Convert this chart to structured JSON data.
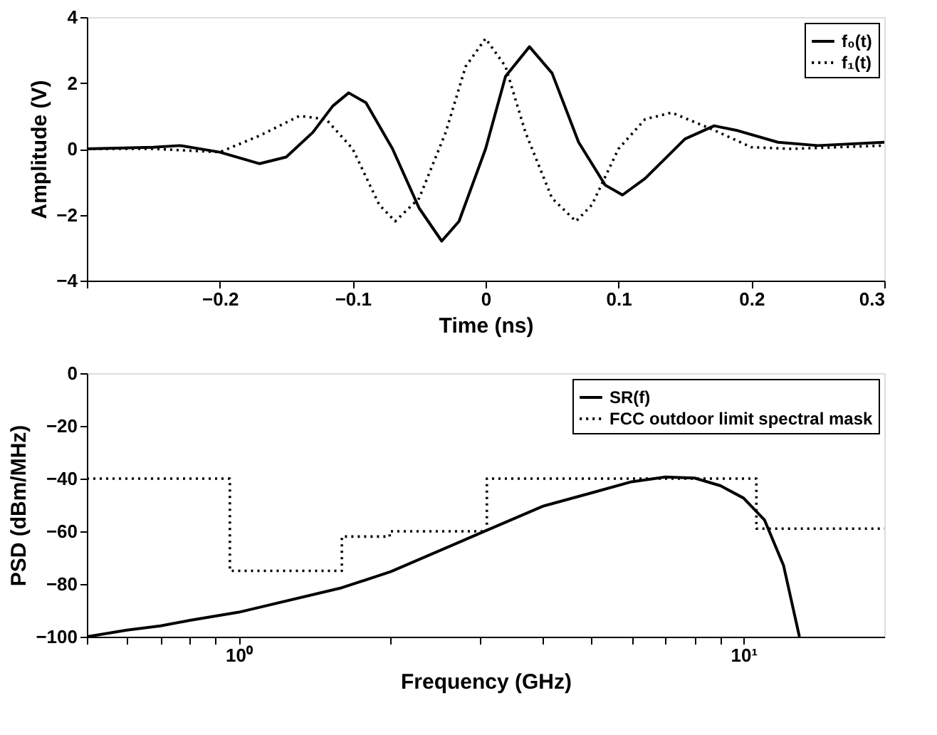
{
  "chart_data": [
    {
      "type": "line",
      "xlabel": "Time (ns)",
      "ylabel": "Amplitude (V)",
      "xlim": [
        -0.3,
        0.3
      ],
      "ylim": [
        -4,
        4
      ],
      "xticks": [
        {
          "value": -0.3,
          "label": null
        },
        -0.2,
        -0.1,
        0,
        0.1,
        0.2,
        0.3
      ],
      "yticks": [
        -4,
        -2,
        0,
        2,
        4
      ],
      "grid": false,
      "legend": "top right",
      "series": [
        {
          "name": "f₀(t)",
          "color": "#000000",
          "line_style": "solid",
          "x": [
            -0.3,
            -0.25,
            -0.23,
            -0.2,
            -0.17,
            -0.15,
            -0.13,
            -0.115,
            -0.103,
            -0.09,
            -0.07,
            -0.05,
            -0.033,
            -0.02,
            0,
            0.015,
            0.033,
            0.05,
            0.07,
            0.09,
            0.103,
            0.12,
            0.15,
            0.172,
            0.19,
            0.22,
            0.25,
            0.3
          ],
          "values": [
            0,
            0.05,
            0.1,
            -0.1,
            -0.45,
            -0.25,
            0.5,
            1.3,
            1.7,
            1.4,
            0,
            -1.8,
            -2.8,
            -2.2,
            0,
            2.2,
            3.1,
            2.3,
            0.2,
            -1.1,
            -1.4,
            -0.9,
            0.3,
            0.7,
            0.55,
            0.2,
            0.1,
            0.2
          ]
        },
        {
          "name": "f₁(t)",
          "color": "#000000",
          "line_style": "dotted",
          "x": [
            -0.3,
            -0.25,
            -0.2,
            -0.17,
            -0.14,
            -0.12,
            -0.1,
            -0.08,
            -0.068,
            -0.05,
            -0.03,
            -0.015,
            0,
            0.015,
            0.03,
            0.05,
            0.068,
            0.08,
            0.1,
            0.12,
            0.14,
            0.17,
            0.2,
            0.23,
            0.3
          ],
          "values": [
            0,
            0,
            -0.1,
            0.4,
            1.0,
            0.9,
            0,
            -1.7,
            -2.2,
            -1.5,
            0.5,
            2.5,
            3.35,
            2.5,
            0.5,
            -1.5,
            -2.2,
            -1.7,
            0,
            0.9,
            1.1,
            0.6,
            0.05,
            0,
            0.1
          ]
        }
      ]
    },
    {
      "type": "line",
      "xlabel": "Frequency (GHz)",
      "ylabel": "PSD (dBm/MHz)",
      "log": "x",
      "xlim": [
        0.5,
        19
      ],
      "ylim": [
        -100,
        0
      ],
      "xticks": [
        {
          "value": 0.5,
          "label": null
        },
        {
          "value": 0.6,
          "label": null
        },
        {
          "value": 0.7,
          "label": null
        },
        {
          "value": 0.8,
          "label": null
        },
        {
          "value": 0.9,
          "label": null
        },
        {
          "value": 1,
          "label": "10⁰"
        },
        {
          "value": 2,
          "label": null
        },
        {
          "value": 3,
          "label": null
        },
        {
          "value": 4,
          "label": null
        },
        {
          "value": 5,
          "label": null
        },
        {
          "value": 6,
          "label": null
        },
        {
          "value": 7,
          "label": null
        },
        {
          "value": 8,
          "label": null
        },
        {
          "value": 9,
          "label": null
        },
        {
          "value": 10,
          "label": "10¹"
        }
      ],
      "yticks": [
        -100,
        -80,
        -60,
        -40,
        -20,
        0
      ],
      "grid": false,
      "legend": "top right",
      "series": [
        {
          "name": "SR(f)",
          "color": "#000000",
          "line_style": "solid",
          "x": [
            0.5,
            0.6,
            0.7,
            0.8,
            1,
            1.6,
            2,
            3,
            4,
            5,
            6,
            7,
            8,
            9,
            10,
            11,
            12,
            12.9
          ],
          "values": [
            -100,
            -97.5,
            -95.9,
            -93.8,
            -90.7,
            -81.4,
            -75.3,
            -60.8,
            -50.5,
            -45.4,
            -41.2,
            -39.4,
            -39.8,
            -42.7,
            -47.4,
            -55.7,
            -73,
            -100
          ]
        },
        {
          "name": "FCC outdoor limit spectral mask",
          "type": "step",
          "color": "#000000",
          "line_style": "dotted",
          "x": [
            0.5,
            0.96,
            1.6,
            1.99,
            3.1,
            10.6,
            19
          ],
          "values": [
            -40,
            -75,
            -62,
            -60,
            -40,
            -59,
            -59
          ]
        }
      ]
    }
  ]
}
